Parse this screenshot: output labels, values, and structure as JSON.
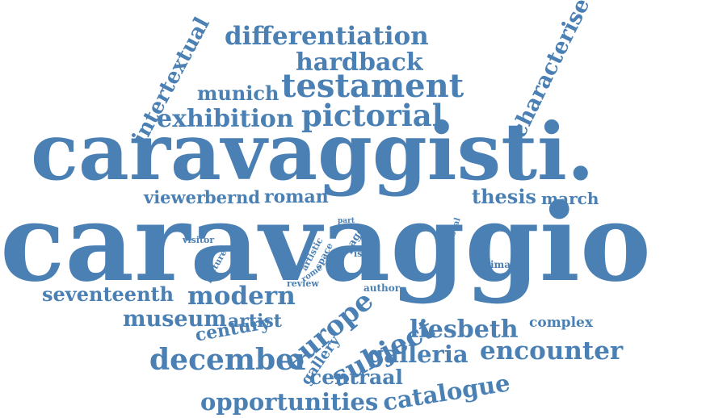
{
  "color": "#4a80b3",
  "words": {
    "caravaggio": "caravaggio",
    "caravaggisti": "caravaggisti.",
    "testament": "testament",
    "pictorial": "pictorial",
    "exhibition": "exhibition",
    "differentiation": "differentiation",
    "hardback": "hardback",
    "munich": "munich",
    "intertextual": "intertextual",
    "characterise": "characterise",
    "viewer": "viewer",
    "bernd": "bernd",
    "roman": "roman",
    "thesis": "thesis",
    "march": "march",
    "seventeenth": "seventeenth",
    "modern": "modern",
    "museum": "museum",
    "artist": "artist",
    "century": "century",
    "europe": "europe",
    "subject": "subject",
    "liesbeth": "liesbeth",
    "complex": "complex",
    "december": "december",
    "gallery": "gallery",
    "galleria": "galleria",
    "encounter": "encounter",
    "centraal": "centraal",
    "catalogue": "catalogue",
    "opportunities": "opportunities",
    "visitor": "visitor",
    "picture": "picture",
    "part": "part",
    "artistic": "artistic",
    "space": "space",
    "page": "page",
    "isbn": "isbn",
    "visual": "visual",
    "rome": "rome",
    "review": "review",
    "author": "author",
    "image": "image"
  }
}
